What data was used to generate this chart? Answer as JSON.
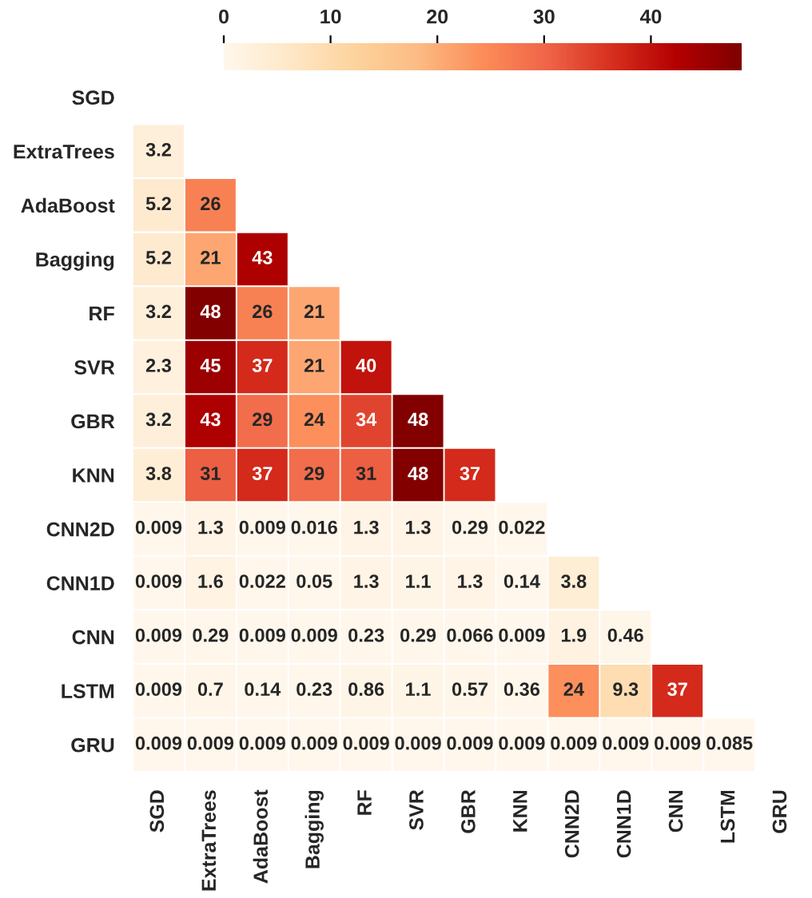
{
  "chart_data": {
    "type": "heatmap",
    "categories": [
      "SGD",
      "ExtraTrees",
      "AdaBoost",
      "Bagging",
      "RF",
      "SVR",
      "GBR",
      "KNN",
      "CNN2D",
      "CNN1D",
      "CNN",
      "LSTM",
      "GRU"
    ],
    "y_categories": [
      "SGD",
      "ExtraTrees",
      "AdaBoost",
      "Bagging",
      "RF",
      "SVR",
      "GBR",
      "KNN",
      "CNN2D",
      "CNN1D",
      "CNN",
      "LSTM",
      "GRU"
    ],
    "cells": [
      [
        null,
        null,
        null,
        null,
        null,
        null,
        null,
        null,
        null,
        null,
        null,
        null,
        null
      ],
      [
        3.2,
        null,
        null,
        null,
        null,
        null,
        null,
        null,
        null,
        null,
        null,
        null,
        null
      ],
      [
        5.2,
        26,
        null,
        null,
        null,
        null,
        null,
        null,
        null,
        null,
        null,
        null,
        null
      ],
      [
        5.2,
        21,
        43,
        null,
        null,
        null,
        null,
        null,
        null,
        null,
        null,
        null,
        null
      ],
      [
        3.2,
        48,
        26,
        21,
        null,
        null,
        null,
        null,
        null,
        null,
        null,
        null,
        null
      ],
      [
        2.3,
        45,
        37,
        21,
        40,
        null,
        null,
        null,
        null,
        null,
        null,
        null,
        null
      ],
      [
        3.2,
        43,
        29,
        24,
        34,
        48,
        null,
        null,
        null,
        null,
        null,
        null,
        null
      ],
      [
        3.8,
        31,
        37,
        29,
        31,
        48,
        37,
        null,
        null,
        null,
        null,
        null,
        null
      ],
      [
        0.009,
        1.3,
        0.009,
        0.016,
        1.3,
        1.3,
        0.29,
        0.022,
        null,
        null,
        null,
        null,
        null
      ],
      [
        0.009,
        1.6,
        0.022,
        0.05,
        1.3,
        1.1,
        1.3,
        0.14,
        3.8,
        null,
        null,
        null,
        null
      ],
      [
        0.009,
        0.29,
        0.009,
        0.009,
        0.23,
        0.29,
        0.066,
        0.009,
        1.9,
        0.46,
        null,
        null,
        null
      ],
      [
        0.009,
        0.7,
        0.14,
        0.23,
        0.86,
        1.1,
        0.57,
        0.36,
        24,
        9.3,
        37,
        null,
        null
      ],
      [
        0.009,
        0.009,
        0.009,
        0.009,
        0.009,
        0.009,
        0.009,
        0.009,
        0.009,
        0.009,
        0.009,
        0.085,
        null
      ]
    ],
    "clim": [
      0,
      48.5
    ],
    "cticks": [
      0,
      10,
      20,
      30,
      40
    ],
    "data_labels": true
  }
}
